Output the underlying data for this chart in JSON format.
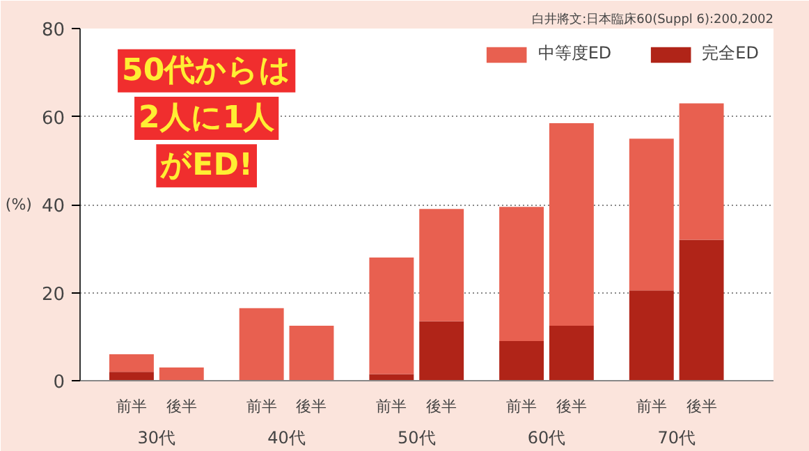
{
  "chart_data": {
    "type": "bar",
    "stacked": true,
    "ylabel": "(%)",
    "categories": [
      "前半",
      "後半",
      "前半",
      "後半",
      "前半",
      "後半",
      "前半",
      "後半",
      "前半",
      "後半"
    ],
    "series": [
      {
        "name": "完全ED",
        "color": "#b02418",
        "values": [
          2,
          0,
          0,
          0,
          1.5,
          13.5,
          9,
          12.5,
          20.5,
          32
        ]
      },
      {
        "name": "中等度ED",
        "color": "#e86050",
        "values": [
          4,
          3,
          16.5,
          12.5,
          26.5,
          25.5,
          30.5,
          46,
          34.5,
          31
        ]
      }
    ],
    "ylim": [
      0,
      80
    ],
    "yticks": [
      0,
      20,
      40,
      60,
      80
    ],
    "grid": "y",
    "legend": "top right",
    "annotations": [
      "白井將文:日本臨床60(Suppl 6):200,2002",
      "50代からは",
      "2人に1人",
      "がED!",
      "30代",
      "40代",
      "50代",
      "60代",
      "70代"
    ]
  }
}
